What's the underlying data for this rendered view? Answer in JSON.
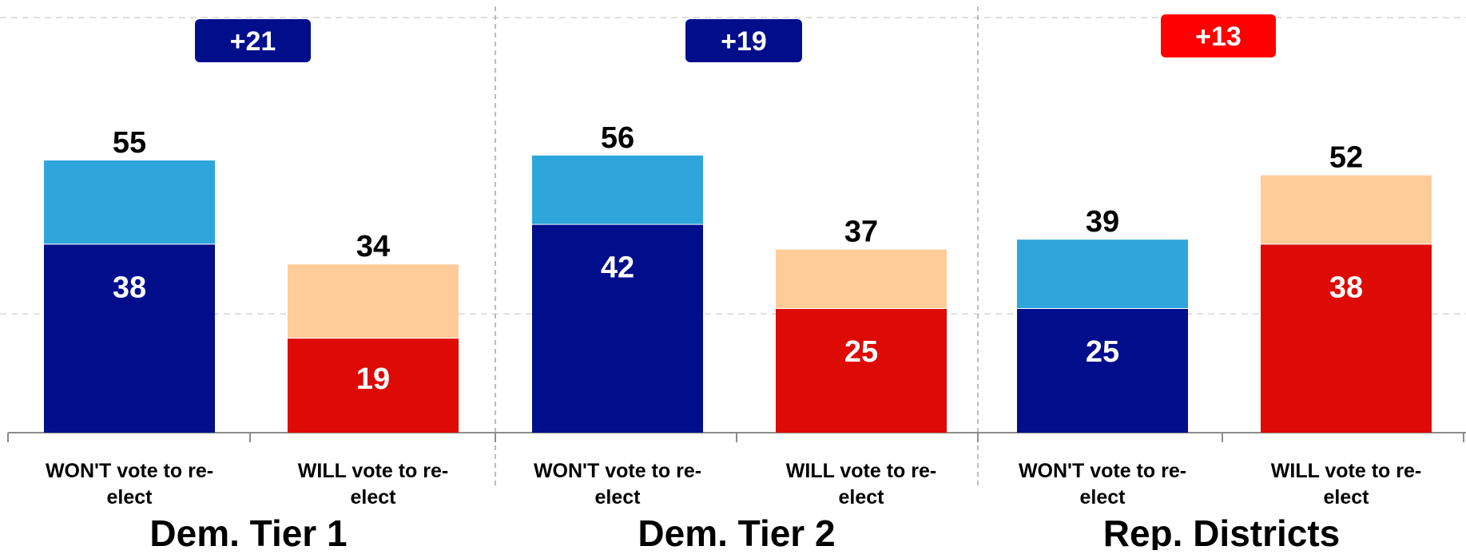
{
  "chart_data": {
    "type": "bar",
    "stacked": true,
    "ylim": [
      0,
      60
    ],
    "grid": true,
    "groups": [
      {
        "title": "Dem. Tier 1",
        "badge": {
          "text": "+21",
          "color": "#000E8C"
        },
        "bars": [
          {
            "label": "WON'T vote to re-elect",
            "total": 55,
            "inner": 38,
            "inner_color": "#000E8C",
            "outer_color": "#2EA6DC"
          },
          {
            "label": "WILL vote to re-elect",
            "total": 34,
            "inner": 19,
            "inner_color": "#DD0A05",
            "outer_color": "#FFCC99"
          }
        ]
      },
      {
        "title": "Dem. Tier 2",
        "badge": {
          "text": "+19",
          "color": "#000E8C"
        },
        "bars": [
          {
            "label": "WON'T vote to re-elect",
            "total": 56,
            "inner": 42,
            "inner_color": "#000E8C",
            "outer_color": "#2EA6DC"
          },
          {
            "label": "WILL vote to re-elect",
            "total": 37,
            "inner": 25,
            "inner_color": "#DD0A05",
            "outer_color": "#FFCC99"
          }
        ]
      },
      {
        "title": "Rep. Districts",
        "badge": {
          "text": "+13",
          "color": "#FF0000"
        },
        "bars": [
          {
            "label": "WON'T vote to re-elect",
            "total": 39,
            "inner": 25,
            "inner_color": "#000E8C",
            "outer_color": "#2EA6DC"
          },
          {
            "label": "WILL vote to re-elect",
            "total": 52,
            "inner": 38,
            "inner_color": "#DD0A05",
            "outer_color": "#FFCC99"
          }
        ]
      }
    ]
  }
}
